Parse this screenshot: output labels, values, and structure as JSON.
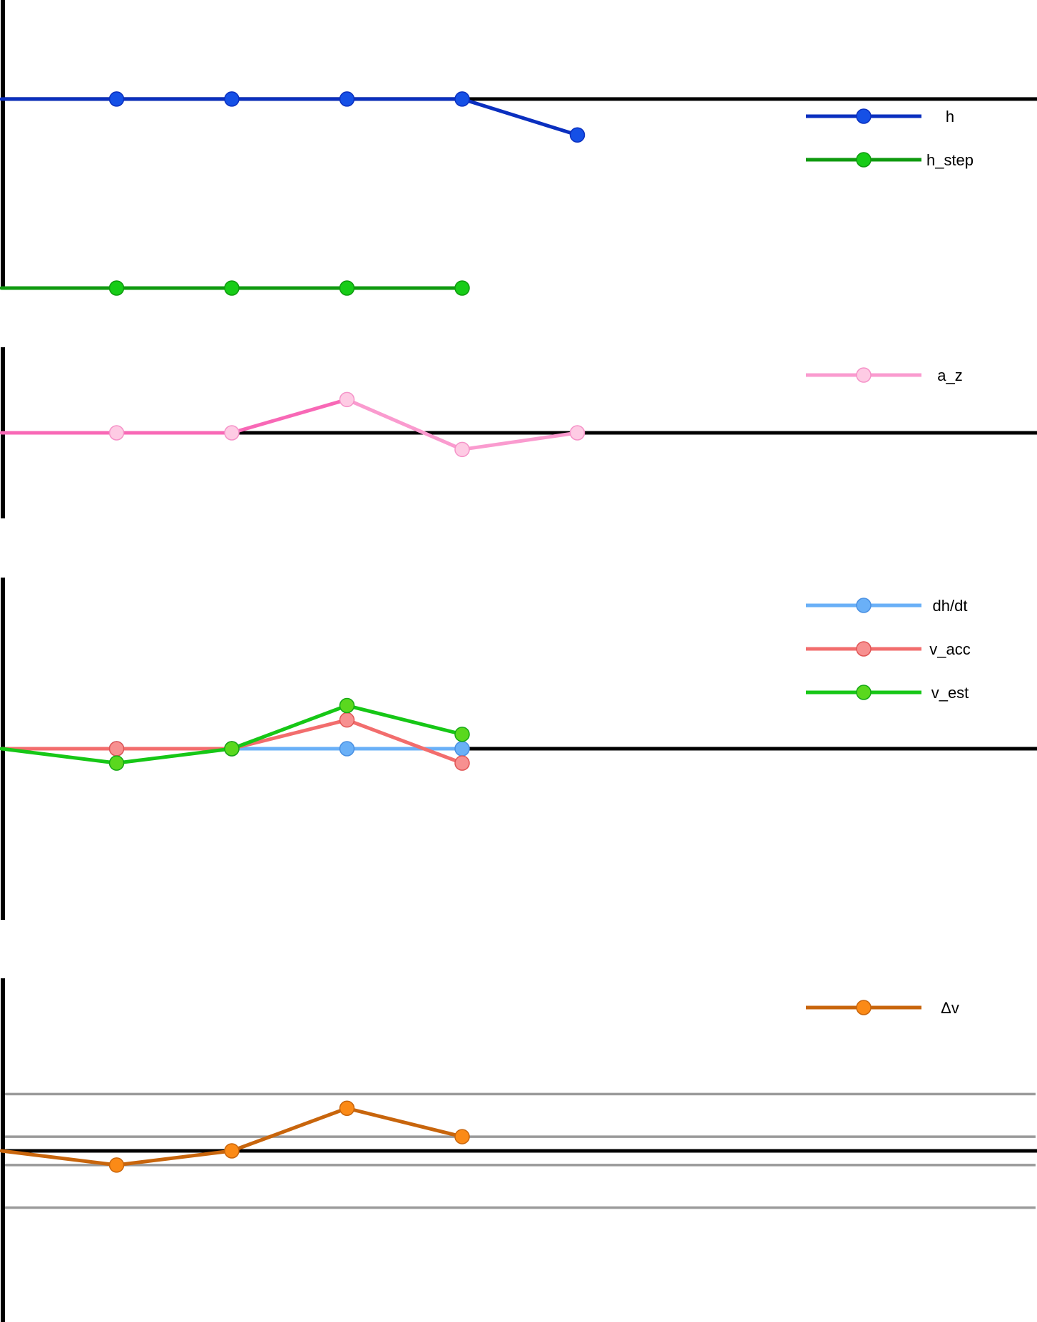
{
  "chart_data": [
    {
      "type": "line",
      "x": [
        0,
        1,
        2,
        3,
        4,
        5
      ],
      "series": [
        {
          "name": "h",
          "color": "#0a2fbf",
          "marker": "#1550e6",
          "marker_stroke": "#0a2fbf",
          "values": [
            0,
            0,
            0,
            0,
            0,
            -0.19
          ]
        },
        {
          "name": "h_step",
          "color": "#0f9a0f",
          "marker": "#17cc17",
          "marker_stroke": "#0f9a0f",
          "values": [
            -1,
            -1,
            -1,
            -1,
            -1,
            null
          ]
        }
      ],
      "ylim": [
        -1,
        0.26
      ],
      "legend_position": "top-right",
      "grid": false
    },
    {
      "type": "line",
      "x": [
        0,
        1,
        2,
        3,
        4,
        5
      ],
      "series": [
        {
          "name": "a_z",
          "color": "#fa9bcf",
          "first_segments_color": "#f868b6",
          "first_segments": 3,
          "marker": "#fecbe4",
          "marker_stroke": "#f592c8",
          "values": [
            0,
            0,
            0,
            0.2,
            -0.1,
            0
          ]
        }
      ],
      "ylim": [
        -0.6,
        0.6
      ],
      "legend_position": "top-right",
      "grid": false
    },
    {
      "type": "line",
      "x": [
        0,
        1,
        2,
        3,
        4
      ],
      "series": [
        {
          "name": "dh/dt",
          "color": "#6ab0f7",
          "marker": "#6ab0f7",
          "marker_stroke": "#4a90e2",
          "values": [
            0,
            0,
            0,
            0,
            0
          ]
        },
        {
          "name": "v_acc",
          "color": "#f26d6d",
          "marker": "#f79090",
          "marker_stroke": "#e05555",
          "values": [
            0,
            0,
            0,
            0.1,
            -0.05
          ]
        },
        {
          "name": "v_est",
          "color": "#16c716",
          "marker": "#5ad81e",
          "marker_stroke": "#14a814",
          "values": [
            0,
            -0.05,
            0,
            0.15,
            0.05
          ]
        }
      ],
      "ylim": [
        -0.6,
        0.6
      ],
      "legend_position": "top-right",
      "grid": false
    },
    {
      "type": "line",
      "x": [
        0,
        1,
        2,
        3,
        4
      ],
      "series": [
        {
          "name": "Δv",
          "color": "#c8650c",
          "marker": "#fb8a16",
          "marker_stroke": "#c8650c",
          "values": [
            0,
            -0.05,
            0,
            0.15,
            0.05
          ]
        }
      ],
      "reference_lines": [
        0.2,
        0.05,
        -0.05,
        -0.2
      ],
      "ylim": [
        -0.6,
        0.6
      ],
      "legend_position": "top-right",
      "grid": false
    }
  ]
}
